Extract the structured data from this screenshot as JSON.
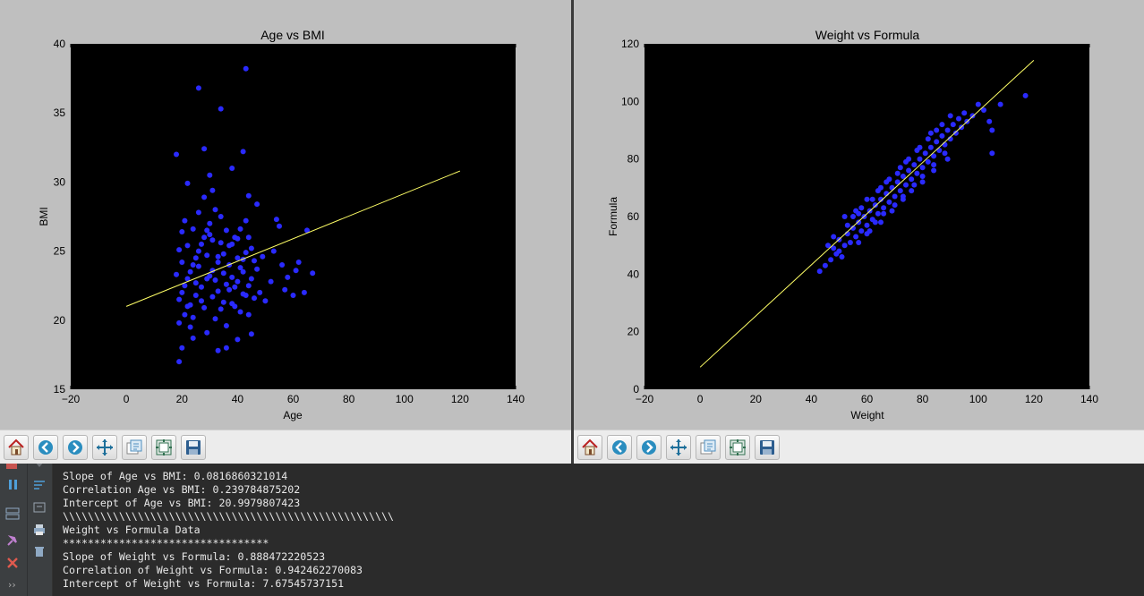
{
  "colors": {
    "figure_bg": "#bfbfbf",
    "axes_bg": "#000000",
    "point": "#2a2aff",
    "fit_line": "#ffff66",
    "console_bg": "#2b2b2b"
  },
  "chart_data": [
    {
      "type": "scatter",
      "title": "Age vs BMI",
      "xlabel": "Age",
      "ylabel": "BMI",
      "xlim": [
        -20,
        140
      ],
      "ylim": [
        15,
        40
      ],
      "xticks": [
        "−20",
        "0",
        "20",
        "40",
        "60",
        "80",
        "100",
        "120",
        "140"
      ],
      "yticks": [
        "15",
        "20",
        "25",
        "30",
        "35",
        "40"
      ],
      "fit_line": {
        "slope": 0.0816860321014,
        "intercept": 20.9979807423,
        "x_range": [
          0,
          120
        ]
      },
      "points": [
        [
          19,
          17
        ],
        [
          26,
          36.8
        ],
        [
          34,
          35.3
        ],
        [
          43,
          38.2
        ],
        [
          18,
          32
        ],
        [
          28,
          32.4
        ],
        [
          42,
          32.2
        ],
        [
          38,
          31
        ],
        [
          30,
          30.5
        ],
        [
          22,
          29.9
        ],
        [
          31,
          29.4
        ],
        [
          44,
          29
        ],
        [
          47,
          28.4
        ],
        [
          54,
          27.3
        ],
        [
          65,
          26.5
        ],
        [
          56,
          24
        ],
        [
          61,
          23.6
        ],
        [
          64,
          22
        ],
        [
          67,
          23.4
        ],
        [
          48,
          22
        ],
        [
          52,
          22.8
        ],
        [
          58,
          23.1
        ],
        [
          50,
          21.4
        ],
        [
          45,
          19
        ],
        [
          40,
          18.6
        ],
        [
          36,
          18
        ],
        [
          33,
          17.8
        ],
        [
          20,
          18
        ],
        [
          24,
          18.7
        ],
        [
          29,
          19.1
        ],
        [
          19,
          19.8
        ],
        [
          21,
          20.4
        ],
        [
          23,
          21.1
        ],
        [
          25,
          21.8
        ],
        [
          27,
          22.4
        ],
        [
          29,
          23
        ],
        [
          31,
          23.6
        ],
        [
          33,
          24.2
        ],
        [
          35,
          24.8
        ],
        [
          37,
          25.4
        ],
        [
          39,
          26
        ],
        [
          41,
          26.6
        ],
        [
          43,
          27.2
        ],
        [
          20,
          22
        ],
        [
          22,
          23
        ],
        [
          24,
          24
        ],
        [
          26,
          25
        ],
        [
          28,
          26
        ],
        [
          30,
          27
        ],
        [
          32,
          28
        ],
        [
          34,
          27.5
        ],
        [
          36,
          26.5
        ],
        [
          38,
          25.5
        ],
        [
          40,
          24.5
        ],
        [
          42,
          23.5
        ],
        [
          44,
          22.5
        ],
        [
          19,
          21.5
        ],
        [
          21,
          22.5
        ],
        [
          23,
          23.5
        ],
        [
          25,
          24.5
        ],
        [
          27,
          25.5
        ],
        [
          29,
          26.5
        ],
        [
          31,
          25.8
        ],
        [
          33,
          24.6
        ],
        [
          35,
          23.4
        ],
        [
          37,
          22.2
        ],
        [
          39,
          21
        ],
        [
          41,
          20.6
        ],
        [
          43,
          21.8
        ],
        [
          45,
          23
        ],
        [
          20,
          24.2
        ],
        [
          22,
          25.4
        ],
        [
          24,
          26.6
        ],
        [
          26,
          27.8
        ],
        [
          28,
          28.9
        ],
        [
          30,
          26.2
        ],
        [
          32,
          22.9
        ],
        [
          34,
          20.8
        ],
        [
          36,
          19.6
        ],
        [
          38,
          21.2
        ],
        [
          40,
          22.8
        ],
        [
          42,
          24.4
        ],
        [
          44,
          26
        ],
        [
          46,
          24.3
        ],
        [
          18,
          23.3
        ],
        [
          19,
          25.1
        ],
        [
          20,
          26.4
        ],
        [
          21,
          27.2
        ],
        [
          22,
          21
        ],
        [
          23,
          19.5
        ],
        [
          24,
          20.2
        ],
        [
          25,
          22.7
        ],
        [
          26,
          23.9
        ],
        [
          27,
          21.4
        ],
        [
          28,
          20.9
        ],
        [
          29,
          24.7
        ],
        [
          30,
          23.2
        ],
        [
          31,
          21.7
        ],
        [
          32,
          20.1
        ],
        [
          33,
          22.1
        ],
        [
          34,
          25.6
        ],
        [
          35,
          21.3
        ],
        [
          36,
          22.6
        ],
        [
          37,
          24
        ],
        [
          38,
          23.1
        ],
        [
          39,
          22.4
        ],
        [
          40,
          25.9
        ],
        [
          41,
          23.8
        ],
        [
          42,
          21.9
        ],
        [
          43,
          24.9
        ],
        [
          44,
          20.4
        ],
        [
          45,
          25.2
        ],
        [
          46,
          21.6
        ],
        [
          47,
          23.7
        ],
        [
          49,
          24.6
        ],
        [
          53,
          25
        ],
        [
          55,
          26.8
        ],
        [
          57,
          22.2
        ],
        [
          60,
          21.8
        ],
        [
          62,
          24.2
        ]
      ]
    },
    {
      "type": "scatter",
      "title": "Weight vs Formula",
      "xlabel": "Weight",
      "ylabel": "Formula",
      "xlim": [
        -20,
        140
      ],
      "ylim": [
        0,
        120
      ],
      "xticks": [
        "−20",
        "0",
        "20",
        "40",
        "60",
        "80",
        "100",
        "120",
        "140"
      ],
      "yticks": [
        "0",
        "20",
        "40",
        "60",
        "80",
        "100",
        "120"
      ],
      "fit_line": {
        "slope": 0.888472220523,
        "intercept": 7.67545737151,
        "x_range": [
          0,
          120
        ]
      },
      "points": [
        [
          43,
          41
        ],
        [
          45,
          43
        ],
        [
          47,
          45
        ],
        [
          48,
          49
        ],
        [
          49,
          47
        ],
        [
          50,
          52
        ],
        [
          51,
          46
        ],
        [
          52,
          50
        ],
        [
          53,
          54
        ],
        [
          54,
          51
        ],
        [
          55,
          56
        ],
        [
          56,
          53
        ],
        [
          57,
          58
        ],
        [
          58,
          55
        ],
        [
          59,
          60
        ],
        [
          60,
          57
        ],
        [
          61,
          62
        ],
        [
          62,
          59
        ],
        [
          63,
          64
        ],
        [
          64,
          61
        ],
        [
          65,
          66
        ],
        [
          66,
          63
        ],
        [
          67,
          68
        ],
        [
          68,
          65
        ],
        [
          69,
          70
        ],
        [
          70,
          67
        ],
        [
          71,
          72
        ],
        [
          72,
          69
        ],
        [
          73,
          74
        ],
        [
          74,
          71
        ],
        [
          75,
          76
        ],
        [
          76,
          73
        ],
        [
          77,
          78
        ],
        [
          78,
          75
        ],
        [
          79,
          80
        ],
        [
          80,
          77
        ],
        [
          81,
          82
        ],
        [
          82,
          79
        ],
        [
          83,
          84
        ],
        [
          84,
          81
        ],
        [
          85,
          86
        ],
        [
          86,
          83
        ],
        [
          87,
          88
        ],
        [
          88,
          85
        ],
        [
          89,
          90
        ],
        [
          90,
          87
        ],
        [
          91,
          92
        ],
        [
          92,
          89
        ],
        [
          93,
          94
        ],
        [
          94,
          91
        ],
        [
          95,
          96
        ],
        [
          96,
          93
        ],
        [
          98,
          95
        ],
        [
          100,
          99
        ],
        [
          102,
          97
        ],
        [
          104,
          93
        ],
        [
          105,
          90
        ],
        [
          105,
          82
        ],
        [
          108,
          99
        ],
        [
          117,
          102
        ],
        [
          55,
          60
        ],
        [
          58,
          63
        ],
        [
          62,
          66
        ],
        [
          65,
          70
        ],
        [
          68,
          73
        ],
        [
          72,
          77
        ],
        [
          75,
          80
        ],
        [
          78,
          83
        ],
        [
          82,
          87
        ],
        [
          85,
          90
        ],
        [
          50,
          48
        ],
        [
          53,
          57
        ],
        [
          57,
          61
        ],
        [
          60,
          54
        ],
        [
          63,
          58
        ],
        [
          66,
          61
        ],
        [
          70,
          64
        ],
        [
          73,
          67
        ],
        [
          77,
          71
        ],
        [
          80,
          74
        ],
        [
          84,
          78
        ],
        [
          88,
          82
        ],
        [
          46,
          50
        ],
        [
          48,
          53
        ],
        [
          52,
          60
        ],
        [
          56,
          62
        ],
        [
          60,
          66
        ],
        [
          64,
          69
        ],
        [
          67,
          72
        ],
        [
          71,
          75
        ],
        [
          74,
          79
        ],
        [
          79,
          84
        ],
        [
          83,
          89
        ],
        [
          87,
          92
        ],
        [
          90,
          95
        ],
        [
          57,
          51
        ],
        [
          61,
          55
        ],
        [
          65,
          58
        ],
        [
          69,
          62
        ],
        [
          73,
          66
        ],
        [
          76,
          69
        ],
        [
          80,
          72
        ],
        [
          84,
          76
        ],
        [
          89,
          80
        ]
      ]
    }
  ],
  "toolbar": {
    "buttons": [
      {
        "name": "home-button",
        "icon": "home-icon"
      },
      {
        "name": "back-button",
        "icon": "arrow-left-icon"
      },
      {
        "name": "forward-button",
        "icon": "arrow-right-icon"
      },
      {
        "name": "pan-button",
        "icon": "move-icon"
      },
      {
        "name": "zoom-button",
        "icon": "zoom-rect-icon"
      },
      {
        "name": "subplots-button",
        "icon": "subplots-icon"
      },
      {
        "name": "save-button",
        "icon": "floppy-icon"
      }
    ]
  },
  "console": {
    "lines": [
      "*************************************",
      "Slope of Age vs BMI: 0.0816860321014",
      "Correlation Age vs BMI: 0.239784875202",
      "Intercept of Age vs BMI: 20.9979807423",
      "\\\\\\\\\\\\\\\\\\\\\\\\\\\\\\\\\\\\\\\\\\\\\\\\\\\\\\\\\\\\\\\\\\\\\\\\\\\\\\\\\\\\\\\\\\\\\\\\\\\\\\\\\\",
      "Weight vs Formula Data",
      "*********************************",
      "Slope of Weight vs Formula: 0.888472220523",
      "Correlation of Weight vs Formula: 0.942462270083",
      "Intercept of Weight vs Formula: 7.67545737151"
    ]
  }
}
